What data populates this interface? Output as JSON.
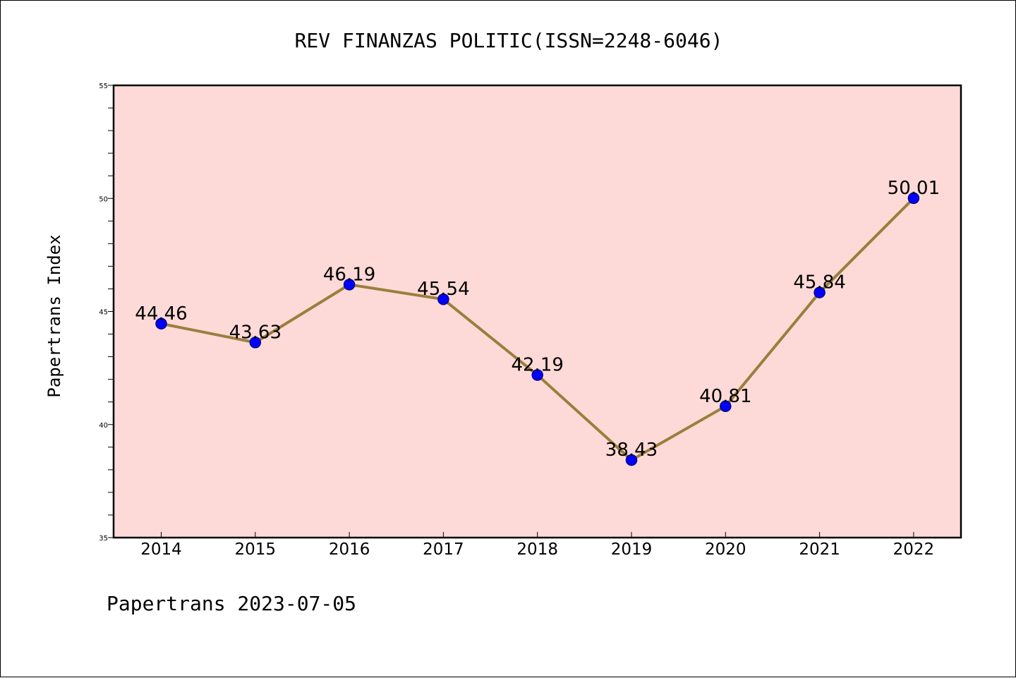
{
  "chart_data": {
    "type": "line",
    "title": "REV FINANZAS POLITIC(ISSN=2248-6046)",
    "ylabel": "Papertrans Index",
    "xlabel": "",
    "footer": "Papertrans 2023-07-05",
    "categories": [
      "2014",
      "2015",
      "2016",
      "2017",
      "2018",
      "2019",
      "2020",
      "2021",
      "2022"
    ],
    "series": [
      {
        "values": [
          44.46,
          43.63,
          46.19,
          45.54,
          42.19,
          38.43,
          40.81,
          45.84,
          50.01
        ],
        "labels": [
          "44.46",
          "43.63",
          "46.19",
          "45.54",
          "42.19",
          "38.43",
          "40.81",
          "45.84",
          "50.01"
        ]
      }
    ],
    "ylim": [
      35,
      55
    ],
    "yticks": [
      "35",
      "40",
      "45",
      "50",
      "55"
    ],
    "grid": false,
    "colors": {
      "plot_background": "#fddad7",
      "line": "#9a7f3c",
      "marker": "#0000ff",
      "marker_edge": "#00008b"
    }
  }
}
